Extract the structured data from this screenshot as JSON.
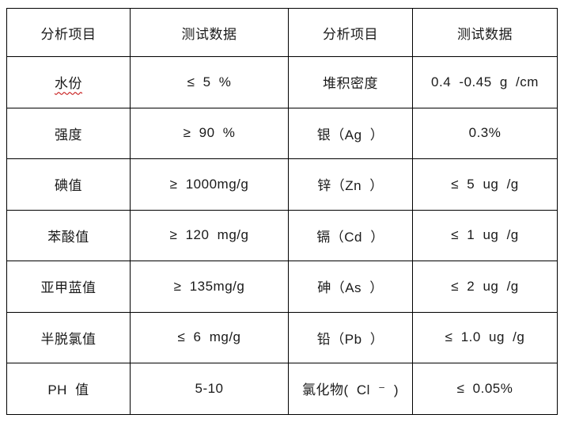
{
  "colors": {
    "background": "#ffffff",
    "border": "#000000",
    "text": "#1a1a1a",
    "spellcheck_underline": "#c00000"
  },
  "table": {
    "headers": {
      "col1": "分析项目",
      "col2": "测试数据",
      "col3": "分析项目",
      "col4": "测试数据"
    },
    "rows": [
      {
        "item_left": "水份",
        "value_left": "≤ 5 %",
        "item_right": "堆积密度",
        "value_right": "0.4 -0.45 g /cm"
      },
      {
        "item_left": "强度",
        "value_left": "≥ 90 %",
        "item_right": "银（Ag ）",
        "value_right": "0.3%"
      },
      {
        "item_left": "碘值",
        "value_left": "≥ 1000mg/g",
        "item_right": "锌（Zn ）",
        "value_right": "≤ 5 ug /g"
      },
      {
        "item_left": "苯酸值",
        "value_left": "≥ 120 mg/g",
        "item_right": "镉（Cd ）",
        "value_right": "≤ 1 ug /g"
      },
      {
        "item_left": "亚甲蓝值",
        "value_left": "≥ 135mg/g",
        "item_right": "砷（As ）",
        "value_right": "≤ 2 ug /g"
      },
      {
        "item_left": "半脱氯值",
        "value_left": "≤ 6 mg/g",
        "item_right": "铅（Pb ）",
        "value_right": "≤ 1.0 ug /g"
      },
      {
        "item_left": "PH 值",
        "value_left": "5-10",
        "item_right": "氯化物( Cl ⁻ )",
        "value_right": "≤ 0.05%"
      }
    ]
  }
}
